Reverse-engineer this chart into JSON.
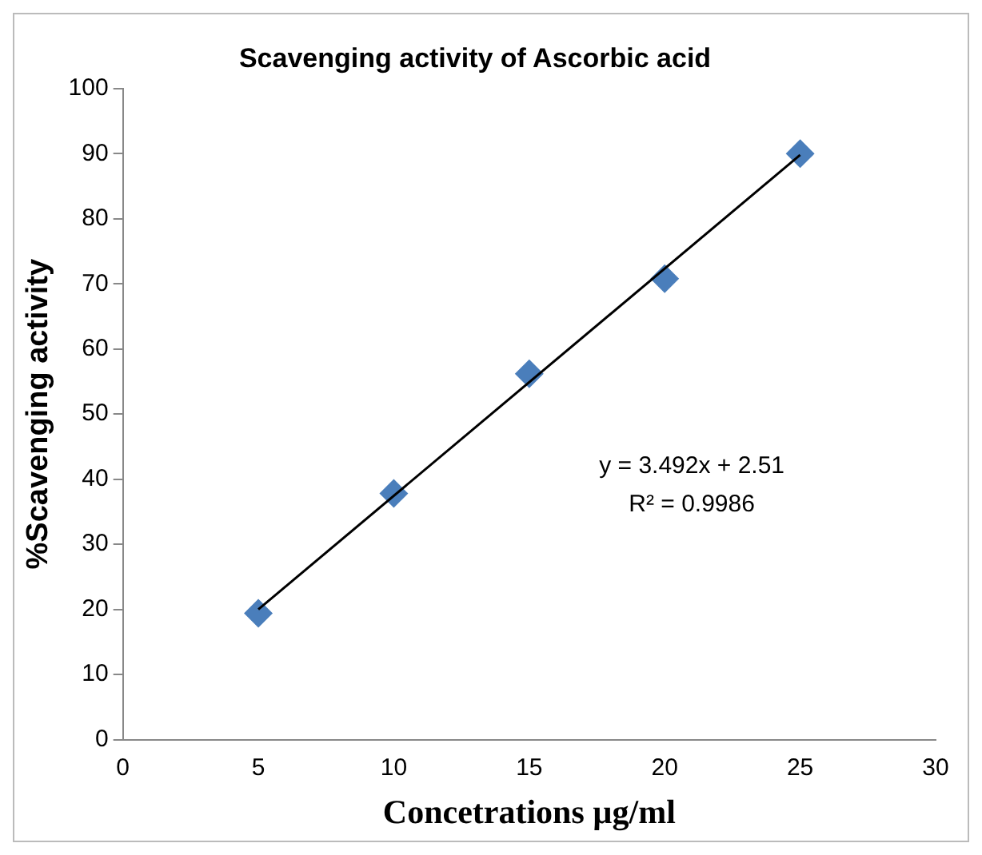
{
  "chart_data": {
    "type": "scatter",
    "title": "Scavenging activity of Ascorbic acid",
    "xlabel": "Concetrations µg/ml",
    "ylabel": "%Scavenging activity",
    "x": [
      5,
      10,
      15,
      20,
      25
    ],
    "series": [
      {
        "type": "scatter",
        "color": "#4a7ebb",
        "marker": "diamond",
        "values": [
          19.4,
          37.8,
          56.2,
          70.8,
          90.0
        ]
      },
      {
        "type": "line",
        "color": "#000000",
        "marker": "none",
        "line_style": "solid",
        "x": [
          5,
          25
        ],
        "values": [
          20.0,
          89.8
        ]
      }
    ],
    "annotations": [
      "y = 3.492x + 2.51",
      "R² = 0.9986"
    ],
    "xlim": [
      0,
      30
    ],
    "xticks": [
      0,
      5,
      10,
      15,
      20,
      25,
      30
    ],
    "ylim": [
      0,
      100
    ],
    "yticks": [
      0,
      10,
      20,
      30,
      40,
      50,
      60,
      70,
      80,
      90,
      100
    ],
    "grid": false,
    "legend": false
  }
}
